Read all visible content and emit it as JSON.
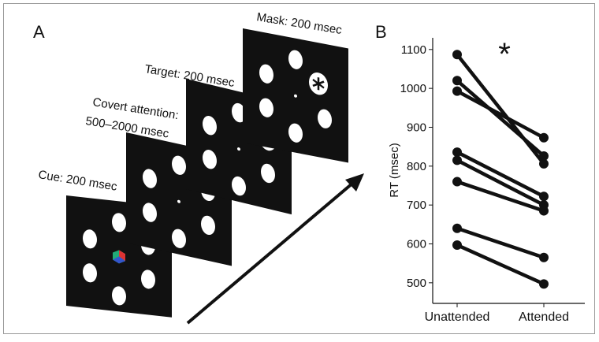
{
  "panel_a": {
    "label": "A",
    "frames": [
      {
        "label": [
          "Cue: 200 msec"
        ]
      },
      {
        "label": [
          "Covert attention:",
          "500–2000 msec"
        ]
      },
      {
        "label": [
          "Target: 200 msec"
        ]
      },
      {
        "label": [
          "Mask: 200 msec"
        ]
      }
    ]
  },
  "chart_data": {
    "type": "line",
    "panel_label": "B",
    "annotation": "*",
    "y_label": "RT (msec)",
    "categories": [
      "Unattended",
      "Attended"
    ],
    "series": [
      {
        "color": "#111111",
        "values": [
          1087,
          806
        ]
      },
      {
        "color": "#111111",
        "values": [
          1020,
          826
        ]
      },
      {
        "color": "#111111",
        "values": [
          993,
          873
        ]
      },
      {
        "color": "#111111",
        "values": [
          836,
          722
        ]
      },
      {
        "color": "#111111",
        "values": [
          815,
          700
        ]
      },
      {
        "color": "#111111",
        "values": [
          760,
          685
        ]
      },
      {
        "color": "#111111",
        "values": [
          640,
          565
        ]
      },
      {
        "color": "#111111",
        "values": [
          597,
          497
        ]
      }
    ],
    "ylim": [
      447,
      1130
    ],
    "yticks": [
      500,
      600,
      700,
      800,
      900,
      1000,
      1100
    ]
  }
}
